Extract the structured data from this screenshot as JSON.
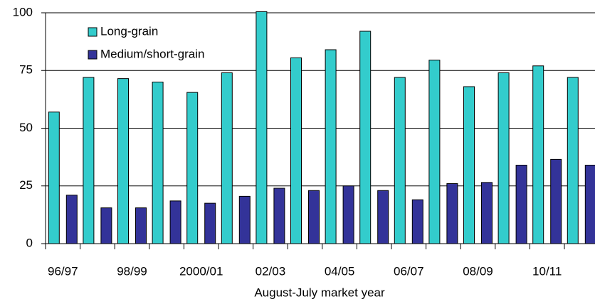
{
  "chart_data": {
    "type": "bar",
    "x_label": "August-July market year",
    "categories": [
      "96/97",
      null,
      "98/99",
      null,
      "2000/01",
      null,
      "02/03",
      null,
      "04/05",
      null,
      "06/07",
      null,
      "08/09",
      null,
      "10/11",
      null
    ],
    "series": [
      {
        "name": "Long-grain",
        "color": "#33cccc",
        "values": [
          57,
          72,
          71.5,
          70,
          65.5,
          74,
          100.5,
          80.5,
          84,
          92,
          72,
          79.5,
          68,
          74,
          77,
          72
        ]
      },
      {
        "name": "Medium/short-grain",
        "color": "#333399",
        "values": [
          21,
          15.5,
          15.5,
          18.5,
          17.5,
          20.5,
          24,
          23,
          25,
          23,
          19,
          26,
          26.5,
          34,
          36.5,
          34
        ]
      }
    ],
    "ylim": [
      0,
      100
    ],
    "yticks": [
      0,
      25,
      50,
      75,
      100
    ],
    "grid": true,
    "legend": "upper left"
  }
}
